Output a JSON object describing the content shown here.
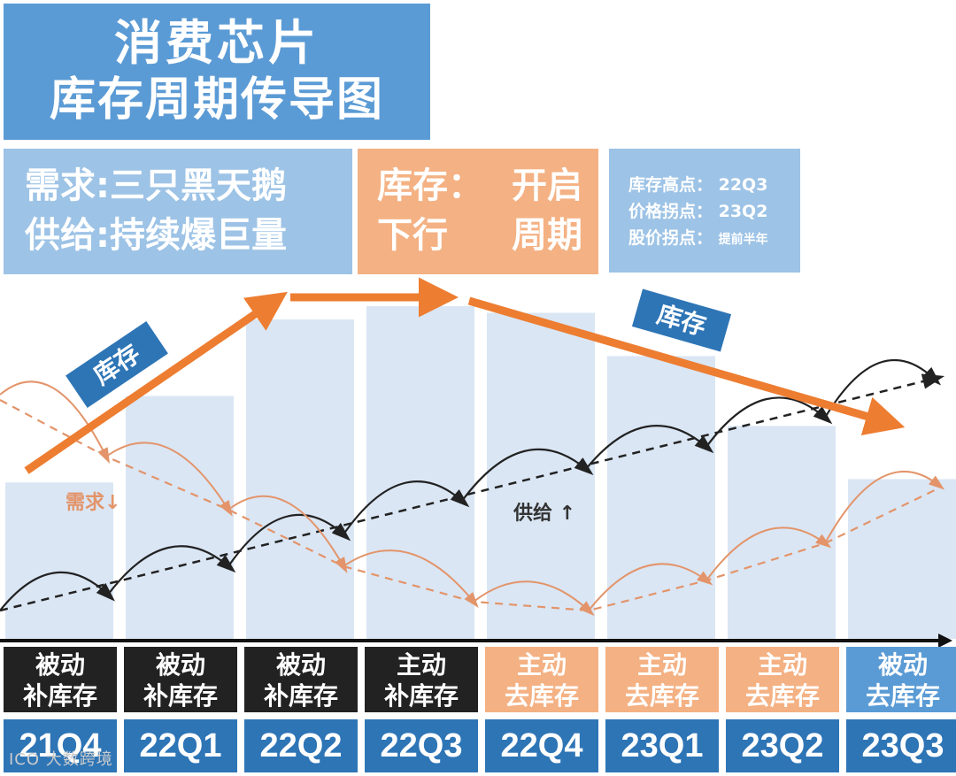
{
  "title": {
    "line1": "消费芯片",
    "line2": "库存周期传导图"
  },
  "demand_box": {
    "line1": "需求:三只黑天鹅",
    "line2": "供给:持续爆巨量"
  },
  "inventory_box": {
    "line1a": "库存：",
    "line1b": "开启",
    "line2a": "下行",
    "line2b": "周期"
  },
  "points_box": {
    "line1": "库存高点：  22Q3",
    "line2": "价格拐点：  23Q2",
    "line3_label": "股价拐点：",
    "line3_value": "提前半年"
  },
  "labels": {
    "inventory_up": "库存",
    "inventory_down": "库存",
    "demand": "需求↓",
    "supply": "供给  ↑"
  },
  "watermark": "ICO 大数跨境",
  "colors": {
    "dark": "#222222",
    "orange_stage": "#f4b183",
    "blue_stage": "#5b9bd5",
    "quarter": "#2e75b6",
    "arrow_orange": "#ed7d31",
    "bar": "#dae6f4",
    "demand_line": "#e3946a"
  },
  "chart_data": {
    "type": "bar",
    "categories": [
      "21Q4",
      "22Q1",
      "22Q2",
      "22Q3",
      "22Q4",
      "23Q1",
      "23Q2",
      "23Q3"
    ],
    "stages": [
      {
        "line1": "被动",
        "line2": "补库存",
        "color": "dark"
      },
      {
        "line1": "被动",
        "line2": "补库存",
        "color": "dark"
      },
      {
        "line1": "被动",
        "line2": "补库存",
        "color": "dark"
      },
      {
        "line1": "主动",
        "line2": "补库存",
        "color": "dark"
      },
      {
        "line1": "主动",
        "line2": "去库存",
        "color": "orange_stage"
      },
      {
        "line1": "主动",
        "line2": "去库存",
        "color": "orange_stage"
      },
      {
        "line1": "主动",
        "line2": "去库存",
        "color": "orange_stage"
      },
      {
        "line1": "被动",
        "line2": "去库存",
        "color": "blue_stage"
      }
    ],
    "inventory_bar_levels": [
      0.47,
      0.73,
      0.96,
      1.0,
      0.98,
      0.85,
      0.64,
      0.48
    ],
    "supply_trend": "rising",
    "demand_trend": "falling then recovering"
  }
}
